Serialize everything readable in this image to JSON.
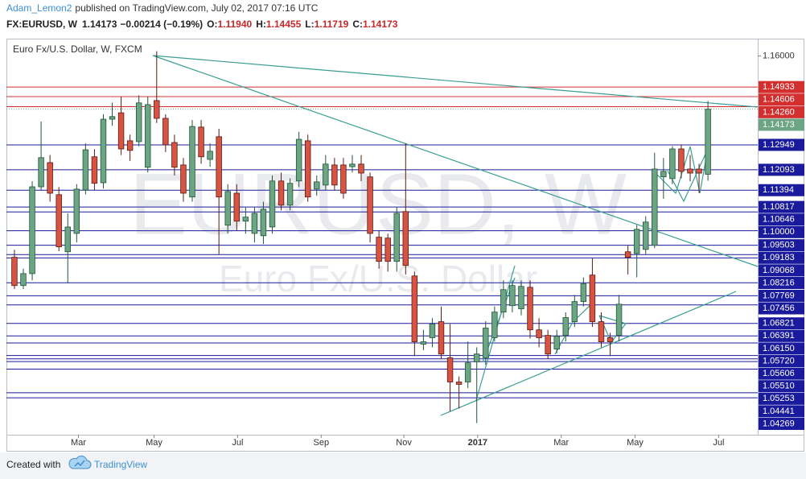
{
  "header": {
    "author": "Adam_Lemon2",
    "published": "published on TradingView.com, July 02, 2017 07:16 UTC",
    "symbol": "FX:EURUSD, W",
    "last": "1.14173",
    "change": "−0.00214 (−0.19%)",
    "ohlc": [
      {
        "key": "O:",
        "value": "1.11940"
      },
      {
        "key": "H:",
        "value": "1.14455"
      },
      {
        "key": "L:",
        "value": "1.11719"
      },
      {
        "key": "C:",
        "value": "1.14173"
      }
    ]
  },
  "chart_data": {
    "type": "candlestick",
    "title": "Euro Fx/U.S. Dollar, W, FXCM",
    "watermark": "EURUSD, W",
    "watermark_sub": "Euro Fx/U.S. Dollar",
    "up_color": "#6ba583",
    "down_color": "#d75442",
    "open": [
      1.0909,
      1.0812,
      1.0853,
      1.1151,
      1.1234,
      1.1124,
      1.0928,
      1.0991,
      1.114,
      1.1254,
      1.1165,
      1.1383,
      1.1405,
      1.1309,
      1.1306,
      1.1218,
      1.1447,
      1.1386,
      1.1303,
      1.1226,
      1.1116,
      1.1356,
      1.1245,
      1.1323,
      1.1019,
      1.1129,
      1.1033,
      1.0991,
      1.0983,
      1.1013,
      1.1171,
      1.1088,
      1.1171,
      1.1309,
      1.1143,
      1.1157,
      1.1226,
      1.1226,
      1.122,
      1.1229,
      1.1185,
      1.0978,
      1.0975,
      1.0895,
      1.1066,
      1.0845,
      1.0611,
      1.0633,
      1.0688,
      1.0564,
      1.0481,
      1.0481,
      1.055,
      1.0564,
      1.0633,
      1.0721,
      1.0743,
      1.0732,
      1.0806,
      1.066,
      1.0641,
      1.0594,
      1.0641,
      1.0688,
      1.0757,
      1.0848,
      1.0688,
      1.0633,
      1.0641,
      1.0928,
      1.0922,
      1.0936,
      1.095,
      1.1185,
      1.1179,
      1.1281,
      1.1212,
      1.1212,
      1.1194
    ],
    "high": [
      1.0935,
      1.087,
      1.117,
      1.1375,
      1.126,
      1.115,
      1.106,
      1.116,
      1.13,
      1.128,
      1.14,
      1.144,
      1.146,
      1.133,
      1.1465,
      1.146,
      1.1616,
      1.14,
      1.133,
      1.125,
      1.138,
      1.138,
      1.13,
      1.135,
      1.116,
      1.116,
      1.108,
      1.108,
      1.11,
      1.119,
      1.12,
      1.118,
      1.134,
      1.133,
      1.119,
      1.126,
      1.125,
      1.125,
      1.126,
      1.126,
      1.12,
      1.1,
      1.099,
      1.108,
      1.13,
      1.086,
      1.066,
      1.07,
      1.074,
      1.068,
      1.05,
      1.062,
      1.06,
      1.069,
      1.074,
      1.083,
      1.083,
      1.083,
      1.083,
      1.07,
      1.066,
      1.066,
      1.072,
      1.078,
      1.084,
      1.0905,
      1.072,
      1.065,
      1.078,
      1.095,
      1.102,
      1.105,
      1.1268,
      1.125,
      1.129,
      1.1296,
      1.126,
      1.123,
      1.14455
    ],
    "low": [
      1.08,
      1.08,
      1.083,
      1.114,
      1.11,
      1.093,
      1.082,
      1.096,
      1.1125,
      1.114,
      1.1145,
      1.136,
      1.126,
      1.124,
      1.129,
      1.12,
      1.137,
      1.127,
      1.119,
      1.11,
      1.11,
      1.123,
      1.122,
      1.092,
      1.099,
      1.1,
      1.099,
      1.096,
      1.0955,
      1.099,
      1.107,
      1.107,
      1.115,
      1.11,
      1.112,
      1.114,
      1.114,
      1.111,
      1.12,
      1.117,
      1.096,
      1.087,
      1.086,
      1.086,
      1.085,
      1.057,
      1.059,
      1.06,
      1.056,
      1.038,
      1.039,
      1.046,
      1.034,
      1.054,
      1.062,
      1.07,
      1.072,
      1.071,
      1.063,
      1.06,
      1.056,
      1.058,
      1.062,
      1.067,
      1.074,
      1.067,
      1.06,
      1.057,
      1.062,
      1.085,
      1.084,
      1.092,
      1.094,
      1.111,
      1.116,
      1.118,
      1.117,
      1.113,
      1.11719
    ],
    "close": [
      1.0812,
      1.0853,
      1.1151,
      1.1251,
      1.1129,
      1.0945,
      1.1013,
      1.1143,
      1.1278,
      1.1163,
      1.1383,
      1.1392,
      1.1281,
      1.1276,
      1.1439,
      1.1433,
      1.1386,
      1.1295,
      1.1218,
      1.1129,
      1.1358,
      1.1254,
      1.1273,
      1.1116,
      1.1135,
      1.1033,
      1.1047,
      1.106,
      1.1074,
      1.1171,
      1.1088,
      1.1163,
      1.1314,
      1.1116,
      1.1168,
      1.1229,
      1.1157,
      1.1129,
      1.1229,
      1.1198,
      1.0991,
      1.0895,
      1.0895,
      1.106,
      1.0881,
      1.0619,
      1.0619,
      1.068,
      1.0577,
      1.0481,
      1.0473,
      1.0547,
      1.0577,
      1.0666,
      1.0721,
      1.0798,
      1.0812,
      1.0809,
      1.066,
      1.0633,
      1.0577,
      1.0638,
      1.0702,
      1.0757,
      1.0818,
      1.0688,
      1.0619,
      1.0619,
      1.0748,
      1.0909,
      1.1005,
      1.103,
      1.1212,
      1.1204,
      1.1281,
      1.1204,
      1.1198,
      1.1198,
      1.14173
    ],
    "xlim": [
      -0.9,
      83.6
    ],
    "xticks": [
      {
        "value": 7.2,
        "label": "Mar"
      },
      {
        "value": 15.7,
        "label": "May"
      },
      {
        "value": 25.1,
        "label": "Jul"
      },
      {
        "value": 34.5,
        "label": "Sep"
      },
      {
        "value": 43.8,
        "label": "Nov"
      },
      {
        "value": 52.1,
        "label": "2017"
      },
      {
        "value": 61.5,
        "label": "Mar"
      },
      {
        "value": 69.8,
        "label": "May"
      },
      {
        "value": 79.2,
        "label": "Jul"
      }
    ],
    "ylim": [
      1.03,
      1.1654
    ],
    "yticks": [
      {
        "value": 1.16,
        "label": "1.16000"
      }
    ],
    "levels": [
      {
        "value": 1.14933,
        "label": "1.14933",
        "color": "#d32f2f"
      },
      {
        "value": 1.14606,
        "label": "1.14606",
        "color": "#d32f2f"
      },
      {
        "value": 1.1426,
        "label": "1.14260",
        "color": "#d32f2f"
      },
      {
        "value": 1.12949,
        "label": "1.12949",
        "color": "#1a1a9c"
      },
      {
        "value": 1.12093,
        "label": "1.12093",
        "color": "#1a1a9c"
      },
      {
        "value": 1.11394,
        "label": "1.11394",
        "color": "#1a1a9c"
      },
      {
        "value": 1.10817,
        "label": "1.10817",
        "color": "#1a1a9c"
      },
      {
        "value": 1.10646,
        "label": "1.10646",
        "color": "#1a1a9c"
      },
      {
        "value": 1.1,
        "label": "1.10000",
        "color": "#1a1a9c"
      },
      {
        "value": 1.09503,
        "label": "1.09503",
        "color": "#1a1a9c"
      },
      {
        "value": 1.09183,
        "label": "1.09183",
        "color": "#1a1a9c"
      },
      {
        "value": 1.09068,
        "label": "1.09068",
        "color": "#1a1a9c"
      },
      {
        "value": 1.08216,
        "label": "1.08216",
        "color": "#1a1a9c"
      },
      {
        "value": 1.07769,
        "label": "1.07769",
        "color": "#1a1a9c"
      },
      {
        "value": 1.07456,
        "label": "1.07456",
        "color": "#1a1a9c"
      },
      {
        "value": 1.06821,
        "label": "1.06821",
        "color": "#1a1a9c"
      },
      {
        "value": 1.06391,
        "label": "1.06391",
        "color": "#1a1a9c"
      },
      {
        "value": 1.0615,
        "label": "1.06150",
        "color": "#1a1a9c"
      },
      {
        "value": 1.0572,
        "label": "1.05720",
        "color": "#1a1a9c"
      },
      {
        "value": 1.05606,
        "label": "1.05606",
        "color": "#1a1a9c"
      },
      {
        "value": 1.0551,
        "label": "1.05510",
        "color": "#1a1a9c"
      },
      {
        "value": 1.05253,
        "label": "1.05253",
        "color": "#1a1a9c"
      },
      {
        "value": 1.04441,
        "label": "1.04441",
        "color": "#1a1a9c"
      },
      {
        "value": 1.04269,
        "label": "1.04269",
        "color": "#1a1a9c"
      }
    ]
  },
  "footer": {
    "created": "Created with",
    "brand": "TradingView"
  }
}
